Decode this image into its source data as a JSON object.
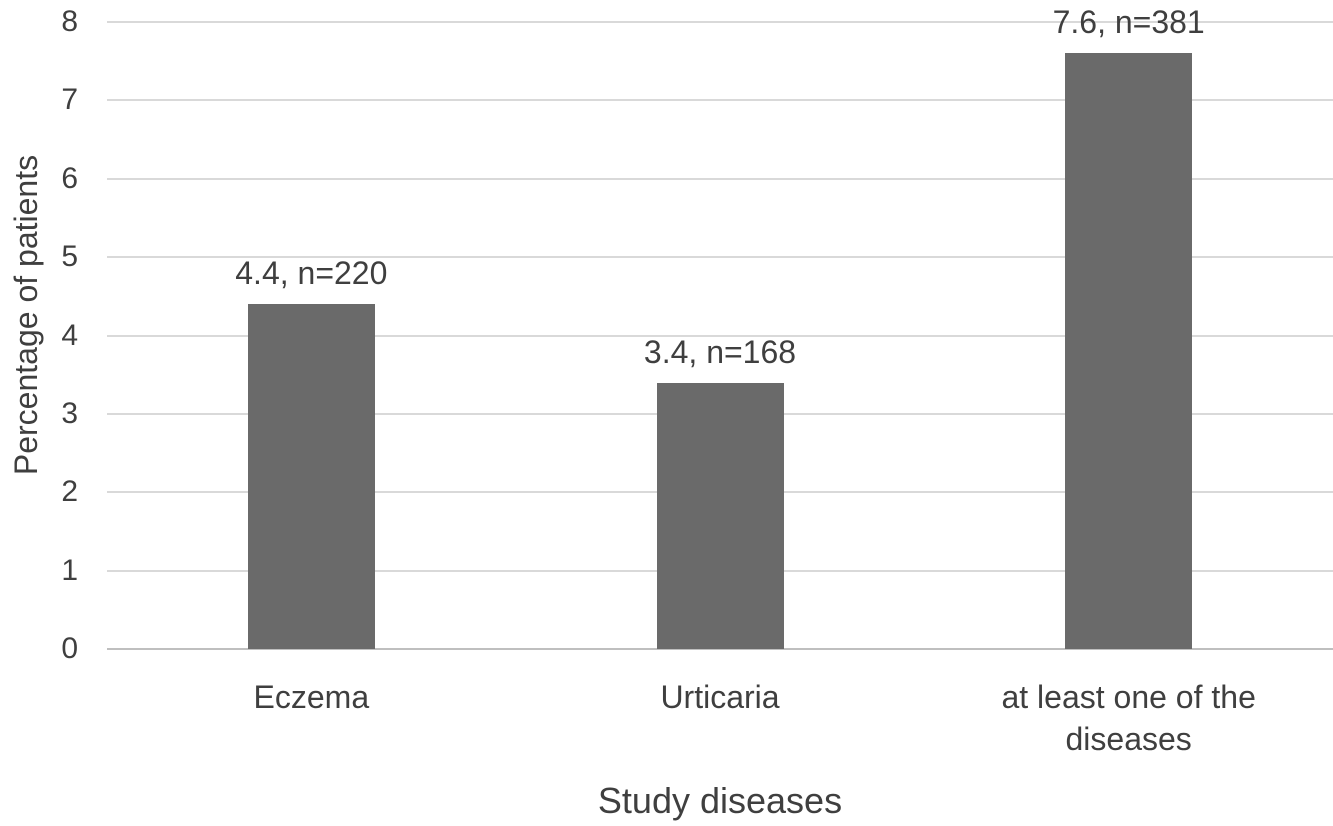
{
  "colors": {
    "background": "#ffffff",
    "bar_fill": "#6a6a6a",
    "gridline": "#d9d9d9",
    "axis_line": "#bfbfbf",
    "text": "#3f3f3f"
  },
  "chart_data": {
    "type": "bar",
    "title": "",
    "xlabel": "Study diseases",
    "ylabel": "Percentage of patients",
    "categories": [
      "Eczema",
      "Urticaria",
      "at least one of the diseases"
    ],
    "values": [
      4.4,
      3.4,
      7.6
    ],
    "counts": [
      220,
      168,
      381
    ],
    "data_labels": [
      "4.4, n=220",
      "3.4, n=168",
      "7.6, n=381"
    ],
    "ylim": [
      0,
      8
    ],
    "yticks": [
      0,
      1,
      2,
      3,
      4,
      5,
      6,
      7,
      8
    ],
    "grid": "horizontal",
    "legend": "none",
    "bar_color": "#6a6a6a"
  }
}
